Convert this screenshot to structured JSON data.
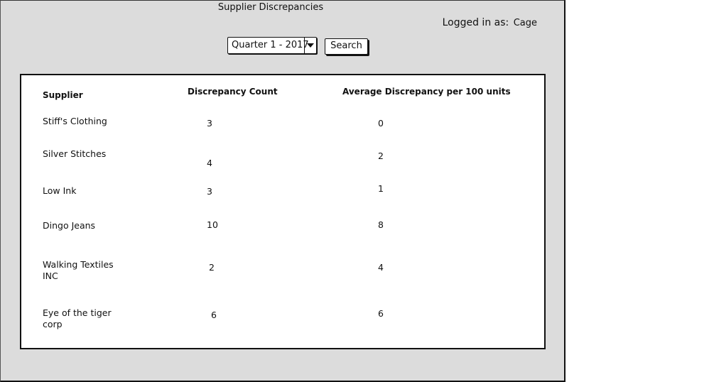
{
  "title": "Supplier Discrepancies",
  "login": {
    "prefix": "Logged in as:",
    "user": "Cage"
  },
  "filter": {
    "selected": "Quarter 1 - 2017",
    "search_label": "Search"
  },
  "table": {
    "headers": [
      "Supplier",
      "Discrepancy Count",
      "Average Discrepancy per 100 units"
    ],
    "rows": [
      {
        "supplier": "Stiff's Clothing",
        "count": "3",
        "average": "0"
      },
      {
        "supplier": "Silver Stitches",
        "count": "4",
        "average": "2"
      },
      {
        "supplier": "Low Ink",
        "count": "3",
        "average": "1"
      },
      {
        "supplier": "Dingo Jeans",
        "count": "10",
        "average": "8"
      },
      {
        "supplier": "Walking Textiles INC",
        "count": "2",
        "average": "4"
      },
      {
        "supplier": "Eye of the tiger corp",
        "count": "6",
        "average": "6"
      }
    ]
  }
}
